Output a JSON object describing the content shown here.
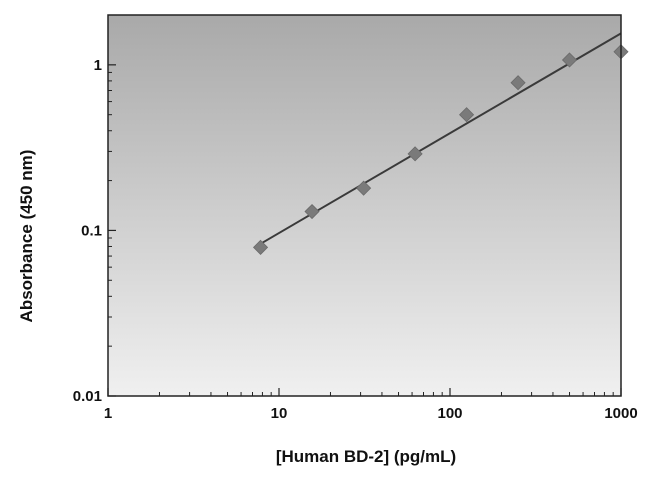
{
  "chart_data": {
    "type": "scatter",
    "title": "",
    "xlabel": "[Human BD-2] (pg/mL)",
    "ylabel": "Absorbance (450 nm)",
    "xscale": "log",
    "yscale": "log",
    "xlim": [
      1,
      1000
    ],
    "ylim": [
      0.01,
      2
    ],
    "xticks": [
      1,
      10,
      100,
      1000
    ],
    "xtick_labels": [
      "1",
      "10",
      "100",
      "1000"
    ],
    "yticks": [
      0.01,
      0.1,
      1
    ],
    "ytick_labels": [
      "0.01",
      "0.1",
      "1"
    ],
    "grid": false,
    "legend": "none",
    "colors": {
      "marker": "#7a7a7a",
      "line": "#3a3a3a",
      "plot_bg_top": "#a9a9a9",
      "plot_bg_bottom": "#f0f0f0"
    },
    "series": [
      {
        "x": [
          7.8,
          15.6,
          31.25,
          62.5,
          125,
          250,
          500,
          1000
        ],
        "y": [
          0.079,
          0.13,
          0.18,
          0.29,
          0.5,
          0.78,
          1.07,
          1.2
        ]
      }
    ],
    "fit_line": {
      "x": [
        7.8,
        1000
      ],
      "y": [
        0.083,
        1.55
      ]
    }
  }
}
